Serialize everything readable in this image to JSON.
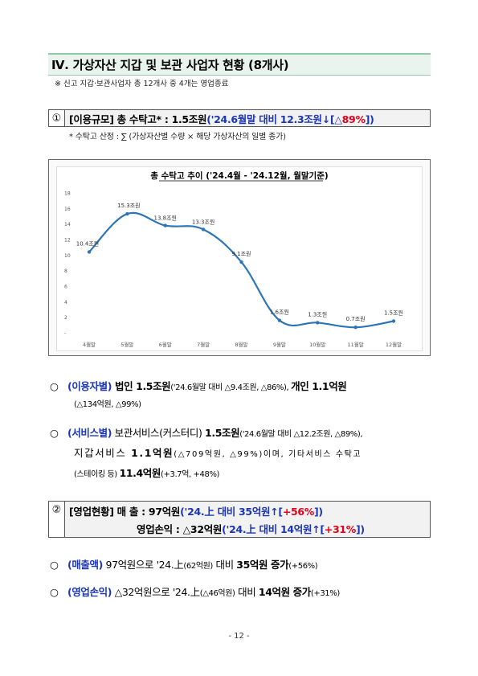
{
  "section": {
    "title": "Ⅳ. 가상자산 지갑 및 보관 사업자 현황 (8개사)",
    "note": "※ 신고 지갑·보관사업자 총 12개사 중 4개는 영업종료"
  },
  "box1": {
    "num": "①",
    "label": "[이용규모] 총 수탁고* : 1.5조원 ",
    "highlight_a": "('24.6월말 대비 12.3조원↓[△",
    "highlight_red": "89%",
    "highlight_b": "])"
  },
  "note2": "* 수탁고 산정 : ∑ (가상자산별 수량 × 해당 가상자산의 일별 종가)",
  "chart_data": {
    "type": "line",
    "title": "총 수탁고 추이 ('24.4월 - '24.12월, 월말기준)",
    "categories": [
      "4월말",
      "5월말",
      "6월말",
      "7월말",
      "8월말",
      "9월말",
      "10월말",
      "11월말",
      "12월말"
    ],
    "values": [
      10.4,
      15.3,
      13.8,
      13.3,
      9.1,
      1.6,
      1.3,
      0.7,
      1.5
    ],
    "data_labels": [
      "10.4조원",
      "15.3조원",
      "13.8조원",
      "13.3조원",
      "9.1조원",
      "1.6조원",
      "1.3조원",
      "0.7조원",
      "1.5조원"
    ],
    "y_ticks": [
      "18",
      "16",
      "14",
      "12",
      "10",
      "8",
      "6",
      "4",
      "2",
      "-"
    ],
    "ylim": [
      0,
      18
    ],
    "line_color": "#2e75b6",
    "grid": false
  },
  "paras": {
    "p1_circ": "○",
    "p1_lab": "(이용자별)",
    "p1_a": " 법인 ",
    "p1_b": "1.5조원",
    "p1_c": "('24.6월말 대비 △9.4조원, △86%), ",
    "p1_d": "개인 1.1억원",
    "p1_e": "(△134억원, △99%)",
    "p2_circ": "○",
    "p2_lab": "(서비스별)",
    "p2_a": " 보관서비스(커스터디) ",
    "p2_b": "1.5조원",
    "p2_c": "('24.6월말 대비 △12.2조원, △89%),",
    "p2_d": "지갑서비스 ",
    "p2_e": "1.1억원",
    "p2_f": "(△709억원, △99%)이며, 기타서비스 수탁고",
    "p2_g": "(스테이킹 등) ",
    "p2_h": "11.4억원",
    "p2_i": "(+3.7억, +48%)"
  },
  "box2": {
    "num": "②",
    "l1_label": "[영업현황] 매    출 : 97억원 ",
    "l1_a": "('24.上 대비 35억원↑[",
    "l1_red": "+56%",
    "l1_b": "])",
    "l2_label": "영업손익 : △32억원 ",
    "l2_a": "('24.上 대비 14억원↑[",
    "l2_red": "+31%",
    "l2_b": "])"
  },
  "paras2": {
    "p3_circ": "○",
    "p3_lab": "(매출액)",
    "p3_a": " 97억원으로 '24.上",
    "p3_b": "(62억원)",
    "p3_c": " 대비 ",
    "p3_d": "35억원 증가",
    "p3_e": "(+56%)",
    "p4_circ": "○",
    "p4_lab": "(영업손익)",
    "p4_a": " △32억원으로 '24.上",
    "p4_b": "(△46억원)",
    "p4_c": " 대비 ",
    "p4_d": "14억원 증가",
    "p4_e": "(+31%)"
  },
  "footer": "- 12 -"
}
